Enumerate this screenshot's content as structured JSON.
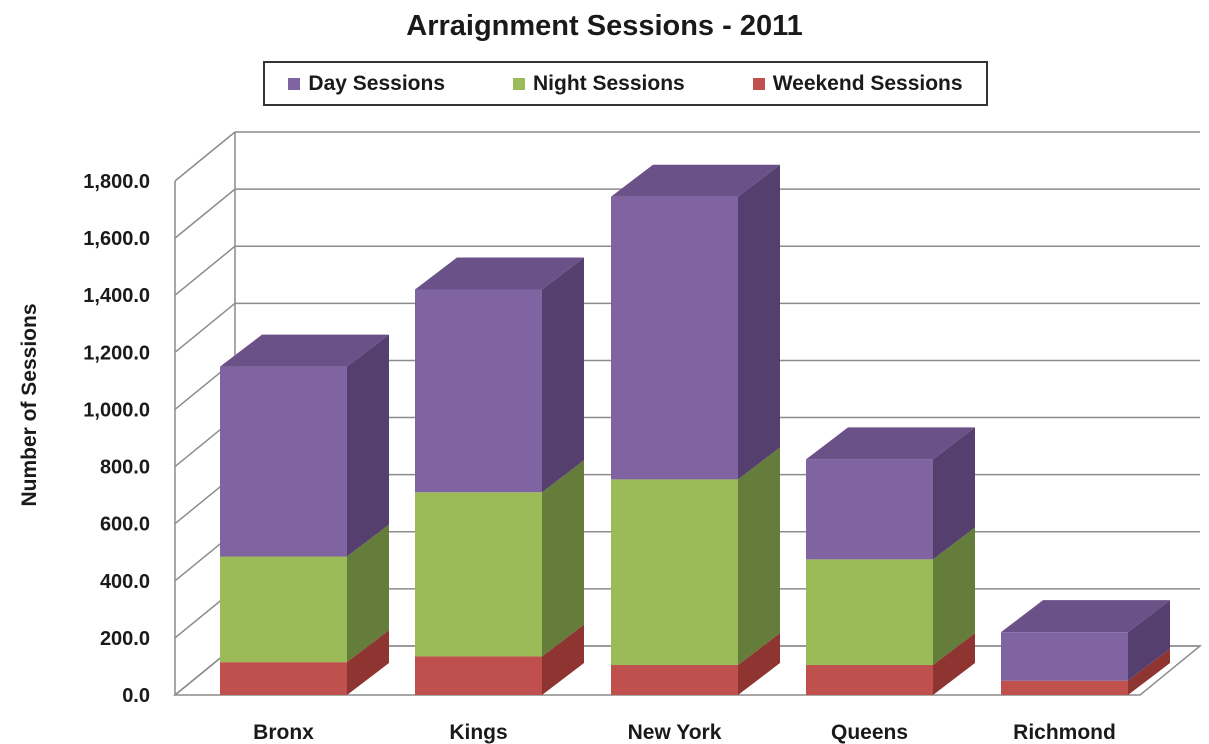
{
  "chart_data": {
    "type": "bar",
    "stacked": true,
    "three_d": true,
    "title": "Arraignment Sessions - 2011",
    "ylabel": "Number of Sessions",
    "xlabel": "",
    "ylim": [
      0,
      1800
    ],
    "ytick_step": 200,
    "ytick_labels": [
      "0.0",
      "200.0",
      "400.0",
      "600.0",
      "800.0",
      "1,000.0",
      "1,200.0",
      "1,400.0",
      "1,600.0",
      "1,800.0"
    ],
    "grid": true,
    "legend_position": "top",
    "categories": [
      "Bronx",
      "Kings",
      "New York",
      "Queens",
      "Richmond"
    ],
    "series": [
      {
        "name": "Weekend Sessions",
        "values": [
          115,
          135,
          105,
          105,
          50
        ],
        "color": "#c0504d",
        "side": "#8e3431",
        "top": "#a8403d"
      },
      {
        "name": "Night Sessions",
        "values": [
          370,
          575,
          650,
          370,
          0
        ],
        "color": "#9bbb59",
        "side": "#657d3a",
        "top": "#7e9c48"
      },
      {
        "name": "Day Sessions",
        "values": [
          665,
          710,
          990,
          350,
          170
        ],
        "color": "#8064a2",
        "side": "#553f6e",
        "top": "#6a5288"
      }
    ],
    "legend": [
      {
        "name": "Day Sessions",
        "color": "#8064a2"
      },
      {
        "name": "Night Sessions",
        "color": "#9bbb59"
      },
      {
        "name": "Weekend Sessions",
        "color": "#c0504d"
      }
    ]
  }
}
